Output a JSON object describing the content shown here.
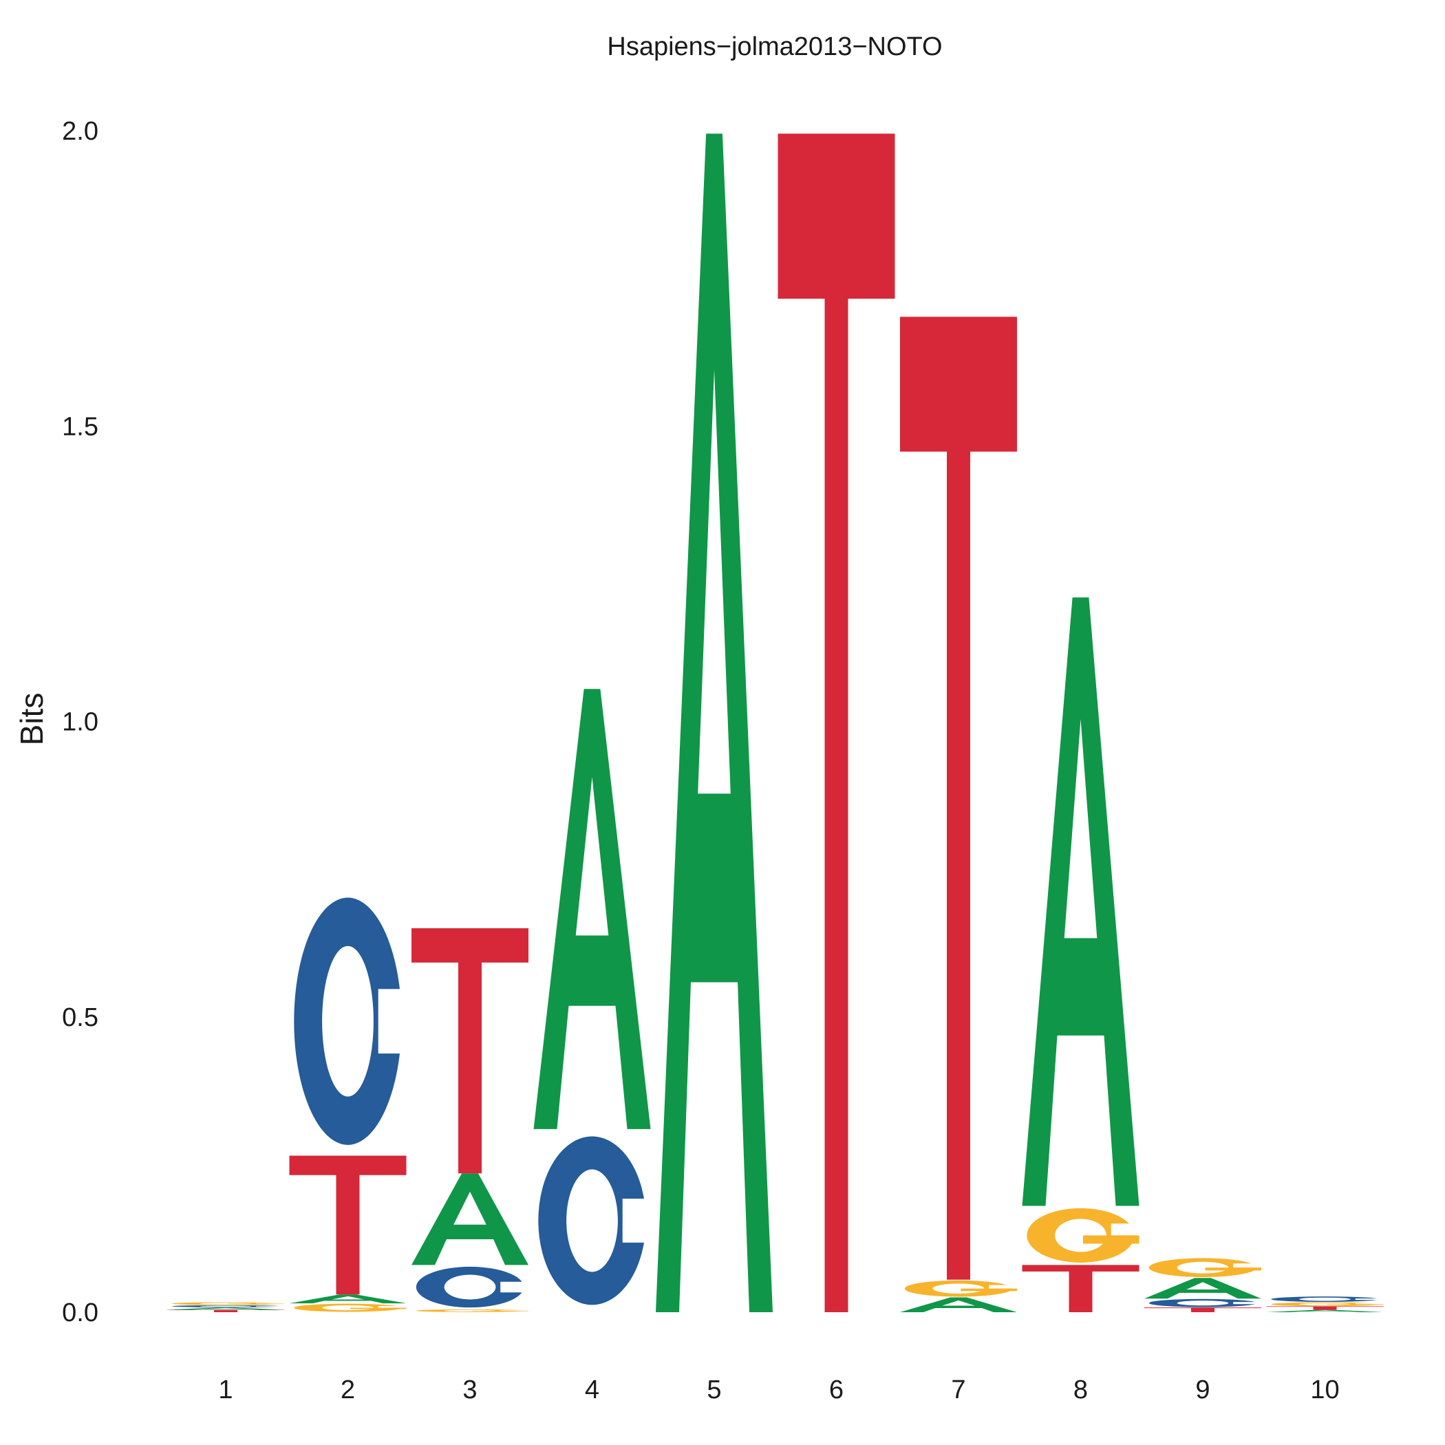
{
  "chart_data": {
    "type": "sequence-logo",
    "title": "Hsapiens−jolma2013−NOTO",
    "ylabel": "Bits",
    "xlabel": "",
    "ylim": [
      0,
      2
    ],
    "yticks": [
      "0.0",
      "0.5",
      "1.0",
      "1.5",
      "2.0"
    ],
    "ytick_values": [
      0,
      0.5,
      1.0,
      1.5,
      2.0
    ],
    "positions": [
      "1",
      "2",
      "3",
      "4",
      "5",
      "6",
      "7",
      "8",
      "9",
      "10"
    ],
    "letter_colors": {
      "A": "#109648",
      "C": "#255C99",
      "G": "#F7B32B",
      "T": "#D62839"
    },
    "stacks": [
      [
        {
          "letter": "T",
          "bits": 0.004
        },
        {
          "letter": "A",
          "bits": 0.004
        },
        {
          "letter": "C",
          "bits": 0.004
        },
        {
          "letter": "G",
          "bits": 0.005
        }
      ],
      [
        {
          "letter": "G",
          "bits": 0.015
        },
        {
          "letter": "A",
          "bits": 0.015
        },
        {
          "letter": "T",
          "bits": 0.235
        },
        {
          "letter": "C",
          "bits": 0.455
        }
      ],
      [
        {
          "letter": "G",
          "bits": 0.005
        },
        {
          "letter": "C",
          "bits": 0.075
        },
        {
          "letter": "A",
          "bits": 0.155
        },
        {
          "letter": "T",
          "bits": 0.415
        }
      ],
      [
        {
          "letter": "C",
          "bits": 0.31
        },
        {
          "letter": "A",
          "bits": 0.745
        }
      ],
      [
        {
          "letter": "A",
          "bits": 1.995
        }
      ],
      [
        {
          "letter": "T",
          "bits": 1.995
        }
      ],
      [
        {
          "letter": "A",
          "bits": 0.025
        },
        {
          "letter": "G",
          "bits": 0.03
        },
        {
          "letter": "T",
          "bits": 1.63
        }
      ],
      [
        {
          "letter": "T",
          "bits": 0.08
        },
        {
          "letter": "G",
          "bits": 0.1
        },
        {
          "letter": "A",
          "bits": 1.03
        }
      ],
      [
        {
          "letter": "T",
          "bits": 0.008
        },
        {
          "letter": "C",
          "bits": 0.015
        },
        {
          "letter": "A",
          "bits": 0.035
        },
        {
          "letter": "G",
          "bits": 0.035
        }
      ],
      [
        {
          "letter": "A",
          "bits": 0.004
        },
        {
          "letter": "T",
          "bits": 0.006
        },
        {
          "letter": "G",
          "bits": 0.007
        },
        {
          "letter": "C",
          "bits": 0.01
        }
      ]
    ]
  }
}
